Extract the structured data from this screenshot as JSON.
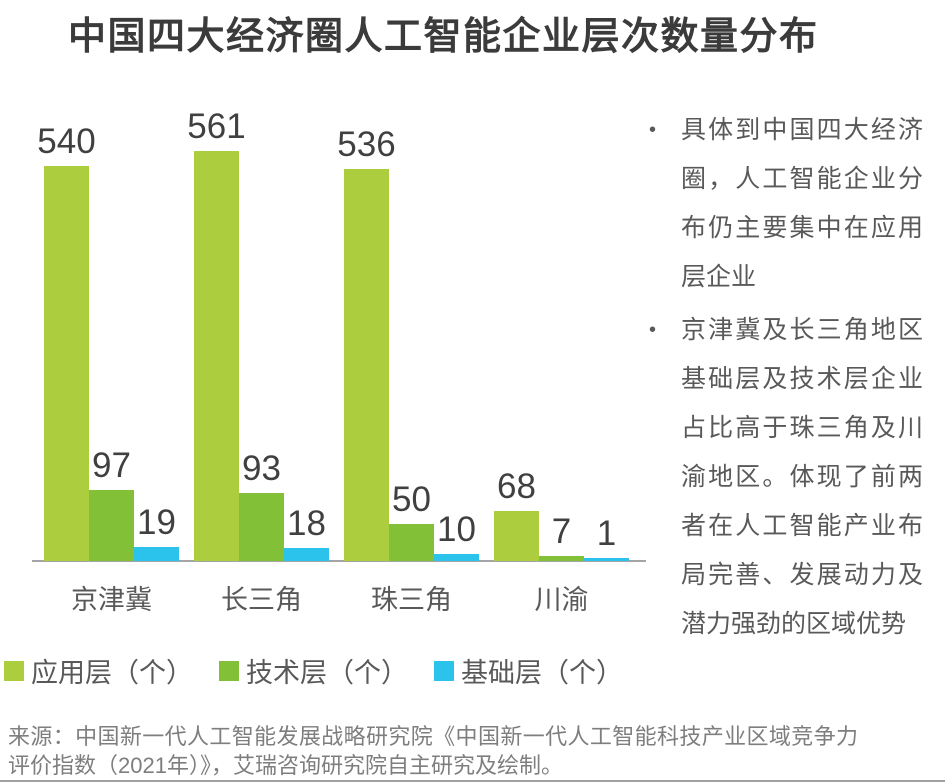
{
  "title": "中国四大经济圈人工智能企业层次数量分布",
  "chart_data": {
    "type": "bar",
    "categories": [
      "京津冀",
      "长三角",
      "珠三角",
      "川渝"
    ],
    "series": [
      {
        "name": "应用层（个）",
        "color": "#abcd3e",
        "values": [
          540,
          561,
          536,
          68
        ]
      },
      {
        "name": "技术层（个）",
        "color": "#82c038",
        "values": [
          97,
          93,
          50,
          7
        ]
      },
      {
        "name": "基础层（个）",
        "color": "#2bc3ec",
        "values": [
          19,
          18,
          10,
          1
        ]
      }
    ],
    "title": "中国四大经济圈人工智能企业层次数量分布",
    "xlabel": "",
    "ylabel": "",
    "ylim": [
      0,
      561
    ],
    "grid": false,
    "legend_position": "bottom",
    "value_labels": true,
    "axis_line_color": "#a5a5a5",
    "value_label_color": "#404040"
  },
  "notes": {
    "items": [
      {
        "text": "具体到中国四大经济圈，人工智能企业分布仍主要集中在应用层企业"
      },
      {
        "text": "京津冀及长三角地区基础层及技术层企业占比高于珠三角及川渝地区。体现了前两者在人工智能产业布局完善、发展动力及潜力强劲的区域优势"
      }
    ]
  },
  "source": "来源：中国新一代人工智能发展战略研究院《中国新一代人工智能科技产业区域竞争力评价指数（2021年）》，艾瑞咨询研究院自主研究及绘制。",
  "bullet_glyph": "•"
}
